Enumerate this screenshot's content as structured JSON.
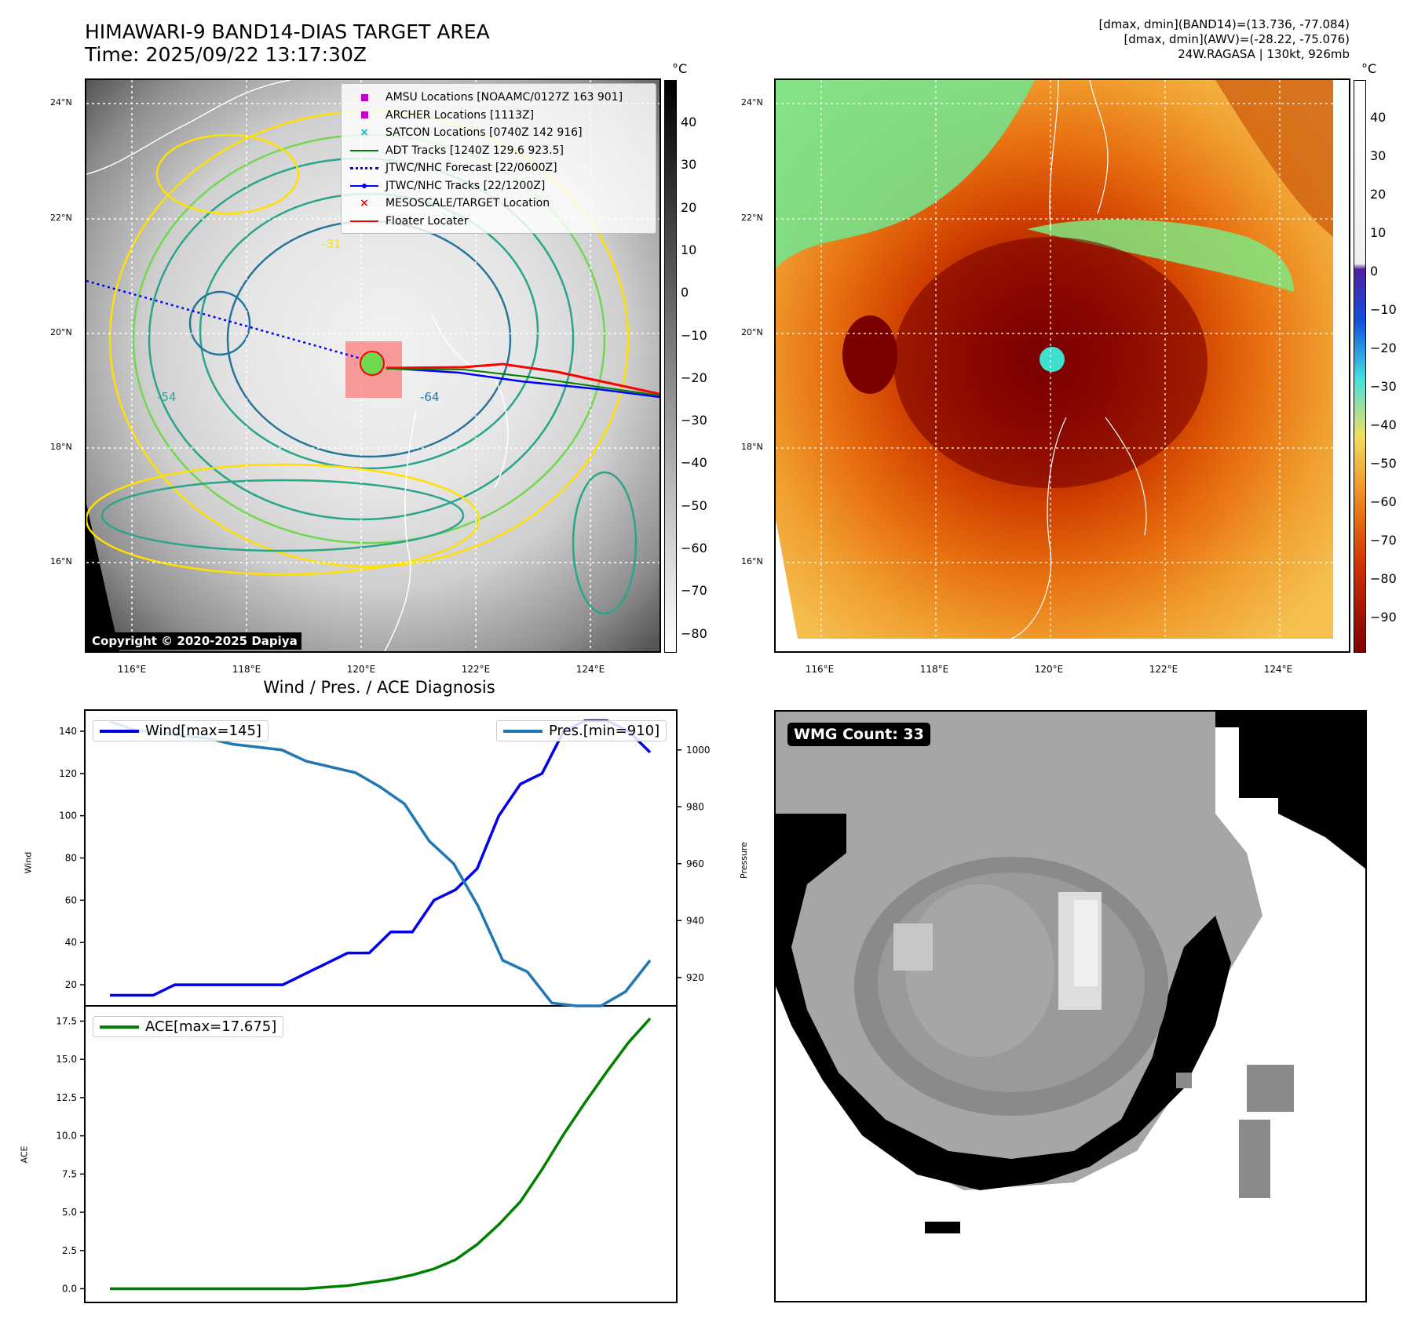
{
  "header": {
    "title_line1": "HIMAWARI-9 BAND14-DIAS TARGET AREA",
    "title_line2": "Time: 2025/09/22 13:17:30Z",
    "info_line1": "[dmax, dmin](BAND14)=(13.736, -77.084)",
    "info_line2": "[dmax, dmin](AWV)=(-28.22, -75.076)",
    "info_line3": "24W.RAGASA | 130kt, 926mb"
  },
  "map_left": {
    "lat_ticks": [
      "24°N",
      "22°N",
      "20°N",
      "18°N",
      "16°N"
    ],
    "lon_ticks": [
      "116°E",
      "118°E",
      "120°E",
      "122°E",
      "124°E"
    ],
    "legend": [
      {
        "label": "AMSU Locations [NOAAMC/0127Z 163 901]",
        "symbol": "square",
        "color": "#c000c0"
      },
      {
        "label": "ARCHER Locations [1113Z]",
        "symbol": "square",
        "color": "#c000c0"
      },
      {
        "label": "SATCON Locations [0740Z 142 916]",
        "symbol": "x",
        "color": "#00c0c0"
      },
      {
        "label": "ADT Tracks [1240Z 129.6 923.5]",
        "symbol": "line",
        "color": "#008000"
      },
      {
        "label": "JTWC/NHC Forecast [22/0600Z]",
        "symbol": "dotted",
        "color": "#0000ff"
      },
      {
        "label": "JTWC/NHC Tracks [22/1200Z]",
        "symbol": "dotline",
        "color": "#0000ff"
      },
      {
        "label": "MESOSCALE/TARGET Location",
        "symbol": "x",
        "color": "#ff0000"
      },
      {
        "label": "Floater Locater",
        "symbol": "line",
        "color": "#ff0000"
      }
    ],
    "contour_labels": [
      "-31",
      "-54",
      "-64"
    ],
    "copyright": "Copyright © 2020-2025 Dapiya",
    "colorbar": {
      "unit": "°C",
      "ticks": [
        "40",
        "30",
        "20",
        "10",
        "0",
        "−10",
        "−20",
        "−30",
        "−40",
        "−50",
        "−60",
        "−70",
        "−80"
      ]
    }
  },
  "map_right": {
    "lat_ticks": [
      "24°N",
      "22°N",
      "20°N",
      "18°N",
      "16°N"
    ],
    "lon_ticks": [
      "116°E",
      "118°E",
      "120°E",
      "122°E",
      "124°E"
    ],
    "colorbar": {
      "unit": "°C",
      "ticks": [
        "40",
        "30",
        "20",
        "10",
        "0",
        "−10",
        "−20",
        "−30",
        "−40",
        "−50",
        "−60",
        "−70",
        "−80",
        "−90"
      ]
    }
  },
  "wind_pres": {
    "title": "Wind / Pres. / ACE Diagnosis",
    "ylabel_left": "Wind",
    "ylabel_right": "Pressure",
    "left_ticks": [
      "140",
      "120",
      "100",
      "80",
      "60",
      "40",
      "20"
    ],
    "right_ticks": [
      "1000",
      "980",
      "960",
      "940",
      "920"
    ],
    "wind_legend": "Wind[max=145]",
    "pres_legend": "Pres.[min=910]"
  },
  "ace": {
    "ylabel": "ACE",
    "ticks": [
      "17.5",
      "15.0",
      "12.5",
      "10.0",
      "7.5",
      "5.0",
      "2.5",
      "0.0"
    ],
    "legend": "ACE[max=17.675]"
  },
  "wmg": {
    "badge": "WMG Count: 33"
  },
  "chart_data": [
    {
      "type": "line",
      "title": "Wind / Pres. / ACE Diagnosis",
      "xlabel": "",
      "series": [
        {
          "name": "Wind[max=145]",
          "axis": "left",
          "color": "#0000ee",
          "values": [
            15,
            15,
            15,
            20,
            20,
            20,
            20,
            20,
            20,
            25,
            30,
            35,
            35,
            45,
            45,
            60,
            65,
            75,
            100,
            115,
            120,
            140,
            145,
            145,
            140,
            130
          ]
        },
        {
          "name": "Pres.[min=910]",
          "axis": "right",
          "color": "#1f77b4",
          "values": [
            1010,
            1007,
            1006,
            1005,
            1004,
            1002,
            1001,
            1000,
            996,
            994,
            992,
            987,
            981,
            968,
            960,
            945,
            926,
            922,
            911,
            910,
            910,
            915,
            926
          ]
        }
      ],
      "ylim_left": [
        10,
        150
      ],
      "ylim_right": [
        910,
        1014
      ]
    },
    {
      "type": "line",
      "series": [
        {
          "name": "ACE[max=17.675]",
          "color": "#008000",
          "values": [
            0,
            0,
            0,
            0,
            0,
            0,
            0,
            0,
            0,
            0,
            0.1,
            0.2,
            0.4,
            0.6,
            0.9,
            1.3,
            1.9,
            2.9,
            4.2,
            5.7,
            7.8,
            10.1,
            12.2,
            14.2,
            16.1,
            17.675
          ]
        }
      ],
      "ylim": [
        -0.9,
        18.5
      ]
    }
  ]
}
